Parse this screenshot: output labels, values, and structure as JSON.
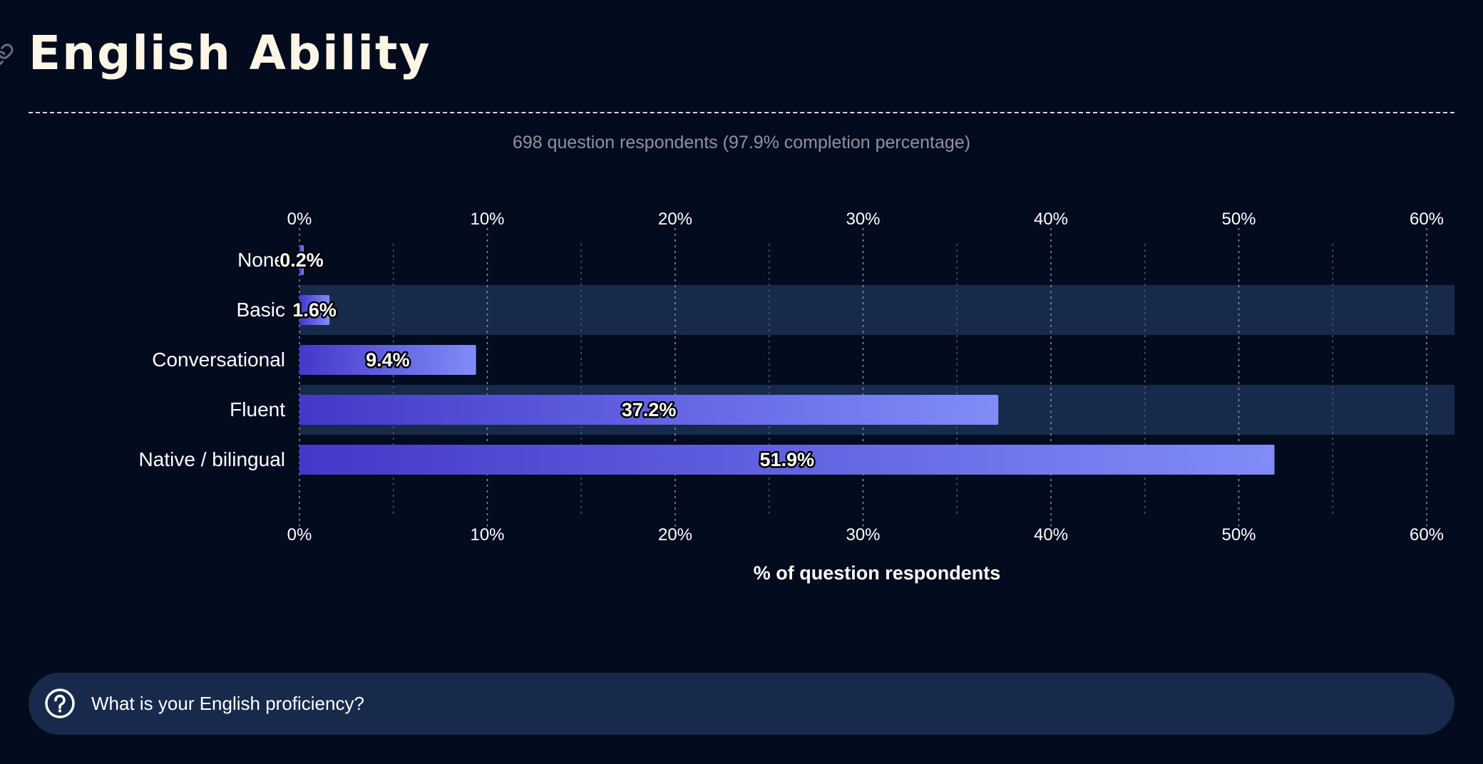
{
  "header": {
    "title": "English Ability",
    "subtitle": "698 question respondents (97.9% completion percentage)"
  },
  "question": {
    "text": "What is your English proficiency?",
    "icon": "question-circle-icon"
  },
  "colors": {
    "background": "#030b1e",
    "band": "#172a4b",
    "bar_start": "#4338ca",
    "bar_end": "#818cf8",
    "title": "#fdf6e6"
  },
  "chart_data": {
    "type": "bar",
    "orientation": "horizontal",
    "categories": [
      "None",
      "Basic",
      "Conversational",
      "Fluent",
      "Native / bilingual"
    ],
    "values": [
      0.2,
      1.6,
      9.4,
      37.2,
      51.9
    ],
    "value_labels": [
      "0.2%",
      "1.6%",
      "9.4%",
      "37.2%",
      "51.9%"
    ],
    "xlabel": "% of question respondents",
    "xlim": [
      0,
      61.5
    ],
    "ticks": [
      0,
      10,
      20,
      30,
      40,
      50,
      60
    ],
    "tick_labels": [
      "0%",
      "10%",
      "20%",
      "30%",
      "40%",
      "50%",
      "60%"
    ],
    "minor_ticks": [
      5,
      15,
      25,
      35,
      45,
      55
    ],
    "grid": true
  }
}
